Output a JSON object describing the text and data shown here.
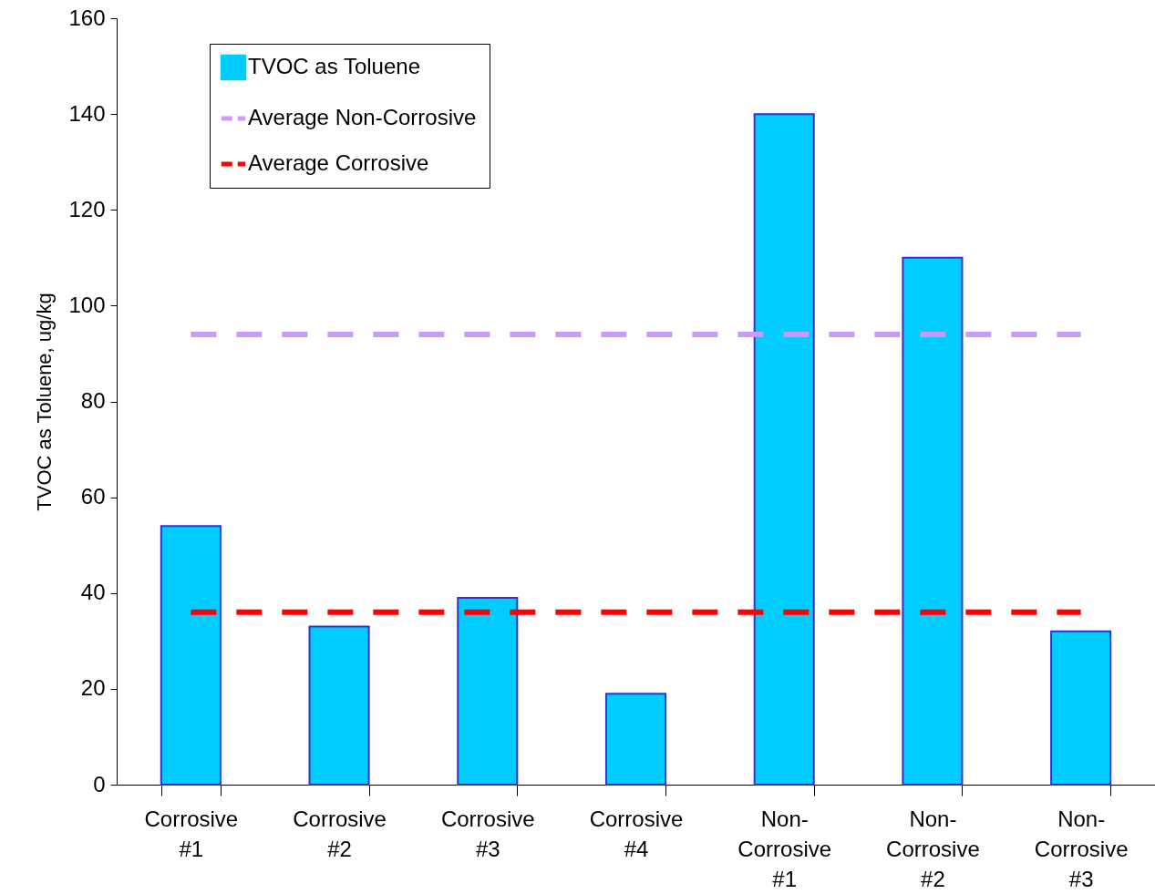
{
  "chart_data": {
    "type": "bar",
    "ylabel": "TVOC as Toluene, ug/kg",
    "categories": [
      "Corrosive #1",
      "Corrosive #2",
      "Corrosive #3",
      "Corrosive #4",
      "Non-Corrosive #1",
      "Non-Corrosive #2",
      "Non-Corrosive #3"
    ],
    "series": [
      {
        "name": "TVOC as Toluene",
        "color": "#00ccff",
        "values": [
          54,
          33,
          39,
          19,
          140,
          110,
          32
        ]
      },
      {
        "name": "Average Non-Corrosive",
        "type": "line",
        "line_style": "dashed",
        "color": "#cc99ff",
        "values": [
          94,
          94,
          94,
          94,
          94,
          94,
          94
        ]
      },
      {
        "name": "Average Corrosive",
        "type": "line",
        "line_style": "dashed",
        "color": "#ff0000",
        "values": [
          36,
          36,
          36,
          36,
          36,
          36,
          36
        ]
      }
    ],
    "ylim": [
      0,
      160
    ],
    "yticks": [
      0,
      20,
      40,
      60,
      80,
      100,
      120,
      140,
      160
    ],
    "legend": "top left"
  }
}
